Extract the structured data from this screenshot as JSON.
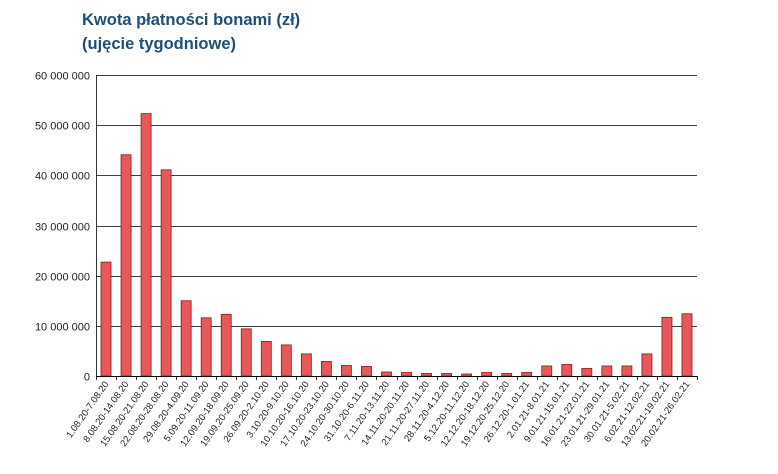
{
  "chart_data": {
    "type": "bar",
    "title": "Kwota płatności bonami (zł)",
    "subtitle": "(ujęcie tygodniowe)",
    "xlabel": "",
    "ylabel": "",
    "ylim": [
      0,
      60000000
    ],
    "yticks": [
      "0",
      "10 000 000",
      "20 000 000",
      "30 000 000",
      "40 000 000",
      "50 000 000",
      "60 000 000"
    ],
    "ytick_values": [
      0,
      10000000,
      20000000,
      30000000,
      40000000,
      50000000,
      60000000
    ],
    "grid": true,
    "legend": "none",
    "categories": [
      "1.08.20-7.08.20",
      "8.08.20-14.08.20",
      "15.08.20-21.08.20",
      "22.08.20-28.08.20",
      "29.08.20-4.09.20",
      "5.09.20-11.09.20",
      "12.09.20-18.09.20",
      "19.09.20-25.09.20",
      "26.09.20-2.10.20",
      "3.10.20-9.10.20",
      "10.10.20-16.10.20",
      "17.10.20-23.10.20",
      "24.10.20-30.10.20",
      "31.10.20-6.11.20",
      "7.11.20-13.11.20",
      "14.11.20-20.11.20",
      "21.11.20-27.11.20",
      "28.11.20-4.12.20",
      "5.12.20-11.12.20",
      "12.12.20-18.12.20",
      "19.12.20-25.12.20",
      "26.12.20-1.01.21",
      "2.01.21-8.01.21",
      "9.01.21-15.01.21",
      "16.01.21-22.01.21",
      "23.01.21-29.01.21",
      "30.01.21-5.02.21",
      "6.02.21-12.02.21",
      "13.02.21-19.02.21",
      "20.02.21-26.02.21"
    ],
    "values": [
      22700000,
      44100000,
      52300000,
      41100000,
      15000000,
      11600000,
      12300000,
      9400000,
      6900000,
      6200000,
      4400000,
      2900000,
      2100000,
      1900000,
      800000,
      700000,
      500000,
      500000,
      400000,
      700000,
      500000,
      700000,
      2000000,
      2300000,
      1500000,
      2000000,
      2000000,
      4400000,
      11700000,
      12400000
    ],
    "colors": {
      "bar": "#e8575a",
      "bar_edge": "#8a1a1a",
      "grid": "#000000",
      "title": "#1f4e79"
    }
  }
}
